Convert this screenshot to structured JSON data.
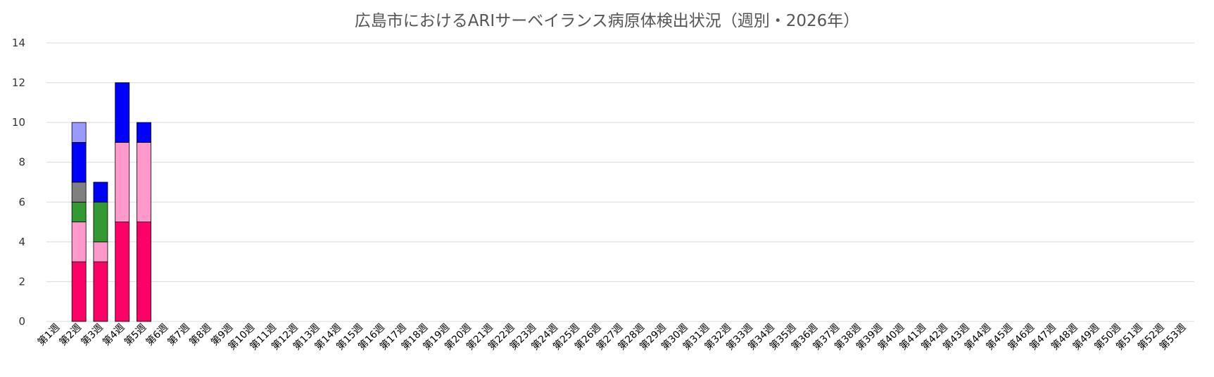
{
  "chart_data": {
    "type": "bar",
    "stacked": true,
    "title": "広島市におけるARIサーベイランス病原体検出状況（週別・2026年）",
    "xlabel": "",
    "ylabel": "",
    "ylim": [
      0,
      14
    ],
    "yticks": [
      "0",
      "2",
      "4",
      "6",
      "8",
      "10",
      "12",
      "14"
    ],
    "grid": true,
    "legend": "none",
    "categories": [
      "第1週",
      "第2週",
      "第3週",
      "第4週",
      "第5週",
      "第6週",
      "第7週",
      "第8週",
      "第9週",
      "第10週",
      "第11週",
      "第12週",
      "第13週",
      "第14週",
      "第15週",
      "第16週",
      "第17週",
      "第18週",
      "第19週",
      "第20週",
      "第21週",
      "第22週",
      "第23週",
      "第24週",
      "第25週",
      "第26週",
      "第27週",
      "第28週",
      "第29週",
      "第30週",
      "第31週",
      "第32週",
      "第33週",
      "第34週",
      "第35週",
      "第36週",
      "第37週",
      "第38週",
      "第39週",
      "第40週",
      "第41週",
      "第42週",
      "第43週",
      "第44週",
      "第45週",
      "第46週",
      "第47週",
      "第48週",
      "第49週",
      "第50週",
      "第51週",
      "第52週",
      "第53週"
    ],
    "series": [
      {
        "color": "#ff0066",
        "values": [
          0,
          3,
          3,
          5,
          5,
          0,
          0,
          0,
          0,
          0,
          0,
          0,
          0,
          0,
          0,
          0,
          0,
          0,
          0,
          0,
          0,
          0,
          0,
          0,
          0,
          0,
          0,
          0,
          0,
          0,
          0,
          0,
          0,
          0,
          0,
          0,
          0,
          0,
          0,
          0,
          0,
          0,
          0,
          0,
          0,
          0,
          0,
          0,
          0,
          0,
          0,
          0,
          0
        ]
      },
      {
        "color": "#ff99cc",
        "values": [
          0,
          2,
          1,
          4,
          4,
          0,
          0,
          0,
          0,
          0,
          0,
          0,
          0,
          0,
          0,
          0,
          0,
          0,
          0,
          0,
          0,
          0,
          0,
          0,
          0,
          0,
          0,
          0,
          0,
          0,
          0,
          0,
          0,
          0,
          0,
          0,
          0,
          0,
          0,
          0,
          0,
          0,
          0,
          0,
          0,
          0,
          0,
          0,
          0,
          0,
          0,
          0,
          0
        ]
      },
      {
        "color": "#339933",
        "values": [
          0,
          1,
          2,
          0,
          0,
          0,
          0,
          0,
          0,
          0,
          0,
          0,
          0,
          0,
          0,
          0,
          0,
          0,
          0,
          0,
          0,
          0,
          0,
          0,
          0,
          0,
          0,
          0,
          0,
          0,
          0,
          0,
          0,
          0,
          0,
          0,
          0,
          0,
          0,
          0,
          0,
          0,
          0,
          0,
          0,
          0,
          0,
          0,
          0,
          0,
          0,
          0,
          0
        ]
      },
      {
        "color": "#808080",
        "values": [
          0,
          1,
          0,
          0,
          0,
          0,
          0,
          0,
          0,
          0,
          0,
          0,
          0,
          0,
          0,
          0,
          0,
          0,
          0,
          0,
          0,
          0,
          0,
          0,
          0,
          0,
          0,
          0,
          0,
          0,
          0,
          0,
          0,
          0,
          0,
          0,
          0,
          0,
          0,
          0,
          0,
          0,
          0,
          0,
          0,
          0,
          0,
          0,
          0,
          0,
          0,
          0,
          0
        ]
      },
      {
        "color": "#0000ff",
        "values": [
          0,
          2,
          1,
          3,
          1,
          0,
          0,
          0,
          0,
          0,
          0,
          0,
          0,
          0,
          0,
          0,
          0,
          0,
          0,
          0,
          0,
          0,
          0,
          0,
          0,
          0,
          0,
          0,
          0,
          0,
          0,
          0,
          0,
          0,
          0,
          0,
          0,
          0,
          0,
          0,
          0,
          0,
          0,
          0,
          0,
          0,
          0,
          0,
          0,
          0,
          0,
          0,
          0
        ]
      },
      {
        "color": "#9999ff",
        "values": [
          0,
          1,
          0,
          0,
          0,
          0,
          0,
          0,
          0,
          0,
          0,
          0,
          0,
          0,
          0,
          0,
          0,
          0,
          0,
          0,
          0,
          0,
          0,
          0,
          0,
          0,
          0,
          0,
          0,
          0,
          0,
          0,
          0,
          0,
          0,
          0,
          0,
          0,
          0,
          0,
          0,
          0,
          0,
          0,
          0,
          0,
          0,
          0,
          0,
          0,
          0,
          0,
          0
        ]
      }
    ]
  }
}
